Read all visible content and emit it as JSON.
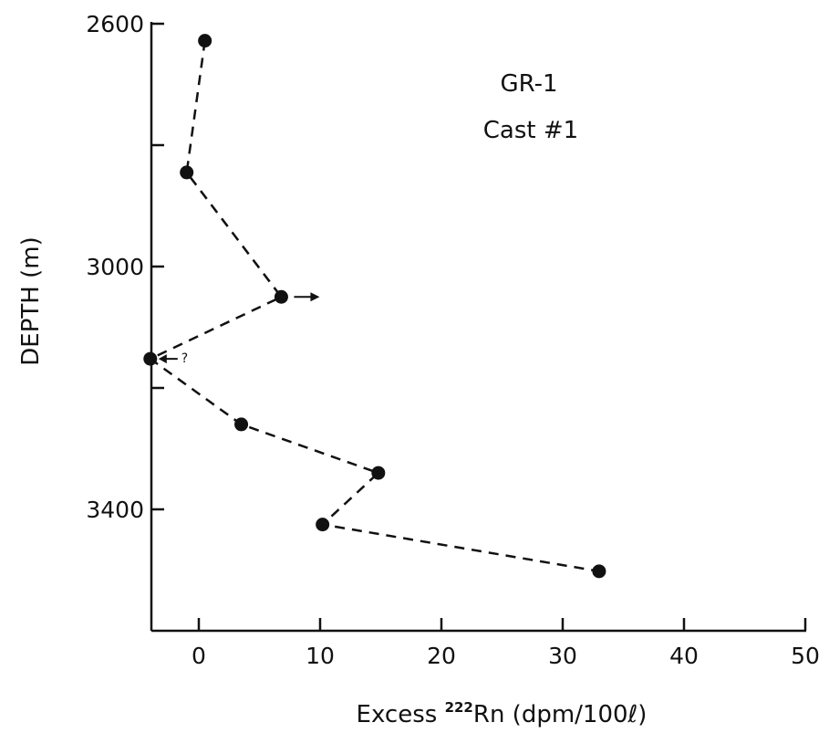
{
  "chart_data": {
    "type": "line",
    "title": "GR-1",
    "subtitle": "Cast #1",
    "xlabel_prefix": "Excess ",
    "xlabel_isotope": "222",
    "xlabel_suffix": "Rn (dpm/100ℓ)",
    "ylabel": "DEPTH (m)",
    "xlim": [
      -4,
      50
    ],
    "ylim": [
      2600,
      3600
    ],
    "y_inverted": true,
    "grid": false,
    "legend": "none",
    "x_ticks": [
      0,
      10,
      20,
      30,
      40,
      50
    ],
    "y_ticks": [
      2600,
      3000,
      3400
    ],
    "y_minor_ticks": [
      2800,
      3200
    ],
    "series": [
      {
        "style": "dashed-with-filled-circles",
        "x": [
          0.5,
          -1.0,
          6.8,
          -4.0,
          3.5,
          14.8,
          10.2,
          33.0
        ],
        "y": [
          2628,
          2845,
          3050,
          3152,
          3260,
          3340,
          3425,
          3502
        ]
      }
    ],
    "annotations": [
      {
        "kind": "arrow-right",
        "x": 6.8,
        "y": 3050
      },
      {
        "kind": "arrow-left",
        "x": -4.0,
        "y": 3152,
        "text": "?"
      }
    ]
  }
}
